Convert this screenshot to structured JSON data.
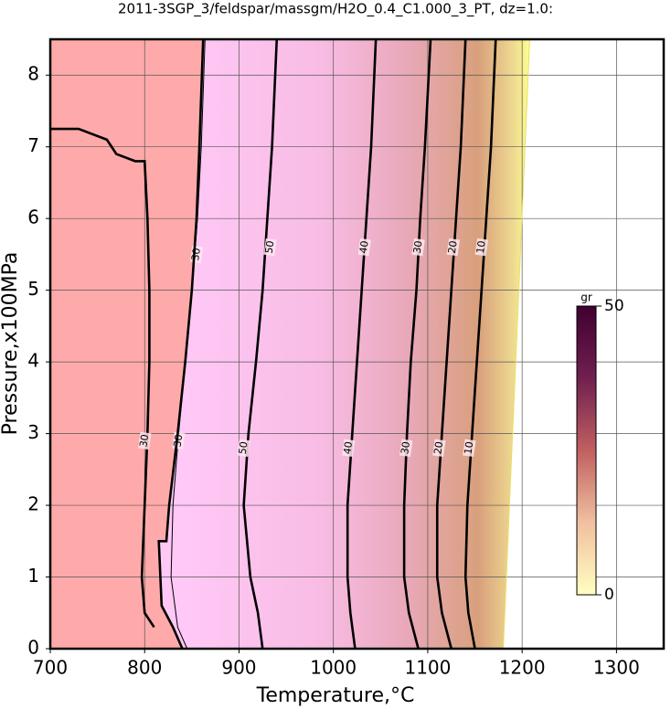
{
  "chart_data": {
    "type": "contour",
    "title": "2011-3SGP_3/feldspar/massgm/H2O_0.4_C1.000_3_PT, dz=1.0:",
    "x_label": "Temperature,°C",
    "y_label": "Pressure,x100MPa",
    "xlim": [
      700,
      1350
    ],
    "xticks": [
      700,
      800,
      900,
      1000,
      1100,
      1200,
      1300
    ],
    "ylim": [
      0,
      8.5
    ],
    "yticks": [
      0,
      1,
      2,
      3,
      4,
      5,
      6,
      7,
      8
    ],
    "grid": true,
    "contours": [
      {
        "level": 50,
        "bold": true,
        "T": [
          925,
          920,
          912,
          905,
          910,
          918,
          925,
          930,
          935,
          940
        ],
        "P": [
          0,
          0.5,
          1,
          2,
          3,
          4,
          5,
          6,
          7,
          8.5
        ],
        "label_T": [
          905,
          933
        ],
        "label_P": [
          2.8,
          5.6
        ]
      },
      {
        "level": 40,
        "bold": true,
        "T": [
          1023,
          1018,
          1015,
          1015,
          1020,
          1025,
          1030,
          1035,
          1040,
          1045
        ],
        "P": [
          0,
          0.5,
          1,
          2,
          3,
          4,
          5,
          6,
          7,
          8.5
        ],
        "label_T": [
          1016,
          1033
        ],
        "label_P": [
          2.8,
          5.6
        ]
      },
      {
        "level": 30,
        "bold": true,
        "T": [
          1090,
          1080,
          1075,
          1075,
          1078,
          1082,
          1088,
          1092,
          1097,
          1103
        ],
        "P": [
          0,
          0.5,
          1,
          2,
          3,
          4,
          5,
          6,
          7,
          8.5
        ],
        "label_T": [
          1077,
          1090
        ],
        "label_P": [
          2.8,
          5.6
        ]
      },
      {
        "level": 20,
        "bold": true,
        "T": [
          1125,
          1115,
          1110,
          1110,
          1115,
          1120,
          1125,
          1130,
          1135,
          1140
        ],
        "P": [
          0,
          0.5,
          1,
          2,
          3,
          4,
          5,
          6,
          7,
          8.5
        ],
        "label_T": [
          1112,
          1127
        ],
        "label_P": [
          2.8,
          5.6
        ]
      },
      {
        "level": 10,
        "bold": true,
        "T": [
          1150,
          1143,
          1140,
          1142,
          1147,
          1152,
          1157,
          1162,
          1167,
          1172
        ],
        "P": [
          0,
          0.5,
          1,
          2,
          3,
          4,
          5,
          6,
          7,
          8.5
        ],
        "label_T": [
          1144,
          1157
        ],
        "label_P": [
          2.8,
          5.6
        ]
      },
      {
        "level": 30,
        "bold": true,
        "T": [
          810,
          800,
          797,
          800,
          803,
          805,
          805,
          803,
          800,
          790,
          770,
          760,
          730,
          700
        ],
        "P": [
          0.3,
          0.5,
          1,
          2,
          3,
          4,
          5,
          6,
          6.8,
          6.8,
          6.9,
          7.1,
          7.25,
          7.25
        ],
        "label_T": [
          800
        ],
        "label_P": [
          2.9
        ]
      },
      {
        "level": 30,
        "bold": false,
        "T": [
          845,
          835,
          828,
          830,
          836,
          843,
          850,
          856,
          860,
          864
        ],
        "P": [
          0,
          0.3,
          1,
          2,
          3,
          4,
          5,
          6,
          7,
          8.5
        ],
        "label_T": [
          836,
          855
        ],
        "label_P": [
          2.9,
          5.5
        ]
      },
      {
        "bold": true,
        "T": [
          840,
          830,
          818,
          815,
          823,
          826,
          835,
          843,
          850,
          855,
          858,
          862
        ],
        "P": [
          0,
          0.3,
          0.6,
          1.5,
          1.5,
          2,
          3,
          4,
          5,
          6,
          7,
          8.5
        ]
      },
      {
        "bold": false,
        "T": [
          1180,
          1208
        ],
        "P": [
          0,
          8.5
        ]
      }
    ],
    "colorbar": {
      "label": "gr",
      "lim": [
        0,
        50
      ],
      "ticks": [
        0,
        50
      ],
      "colors": [
        "#ffffc0",
        "#f0c0a0",
        "#c06060",
        "#702050",
        "#400030"
      ]
    }
  }
}
